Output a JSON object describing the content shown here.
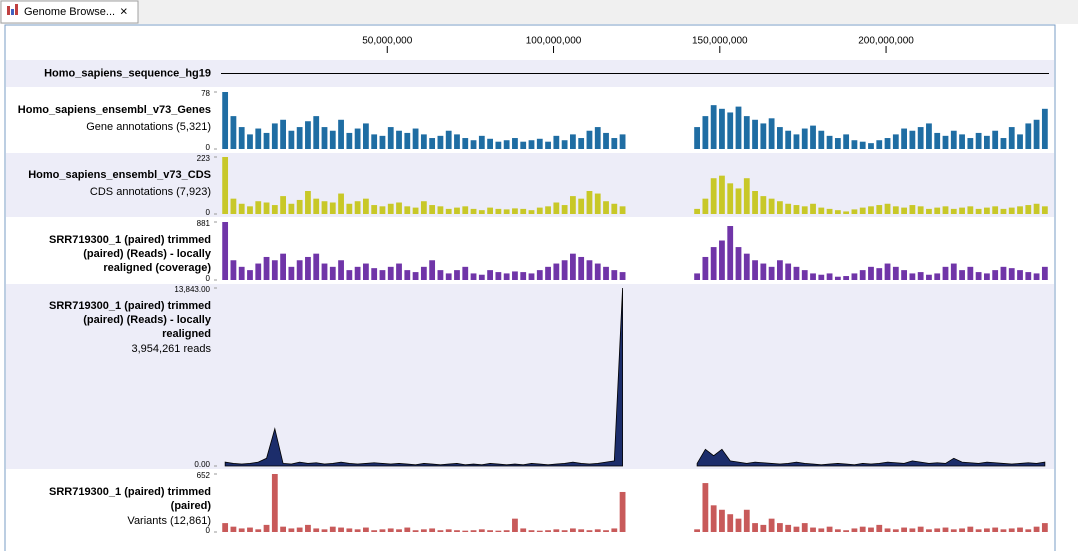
{
  "tab_title": "Genome Browse...",
  "chart_data": {
    "type": "tracks",
    "xlim": [
      0,
      249000000
    ],
    "xticks": [
      {
        "value": 50000000,
        "label": "50,000,000"
      },
      {
        "value": 100000000,
        "label": "100,000,000"
      },
      {
        "value": 150000000,
        "label": "150,000,000"
      },
      {
        "value": 200000000,
        "label": "200,000,000"
      }
    ],
    "tracks": [
      {
        "type": "sequence",
        "label": [
          "Homo_sapiens_sequence_hg19"
        ],
        "color": "#000000"
      },
      {
        "type": "bar",
        "label": [
          "Homo_sapiens_ensembl_v73_Genes"
        ],
        "subtitle": "Gene annotations (5,321)",
        "color": "#1f6da3",
        "ylim": [
          0,
          78
        ],
        "yticks": [
          0,
          78
        ],
        "values": [
          78,
          45,
          30,
          20,
          28,
          22,
          35,
          40,
          25,
          30,
          38,
          45,
          30,
          25,
          40,
          22,
          28,
          35,
          20,
          18,
          30,
          25,
          22,
          28,
          20,
          15,
          18,
          25,
          20,
          15,
          12,
          18,
          14,
          10,
          12,
          15,
          10,
          12,
          14,
          10,
          18,
          12,
          20,
          15,
          25,
          30,
          22,
          15,
          20,
          null,
          null,
          null,
          null,
          null,
          null,
          null,
          null,
          30,
          45,
          60,
          55,
          50,
          58,
          45,
          40,
          35,
          42,
          30,
          25,
          20,
          28,
          32,
          25,
          18,
          15,
          20,
          12,
          10,
          8,
          12,
          15,
          20,
          28,
          25,
          30,
          35,
          22,
          18,
          25,
          20,
          15,
          22,
          18,
          25,
          15,
          30,
          20,
          35,
          40,
          55
        ]
      },
      {
        "type": "bar",
        "label": [
          "Homo_sapiens_ensembl_v73_CDS"
        ],
        "subtitle": "CDS annotations (7,923)",
        "color": "#c8c828",
        "ylim": [
          0,
          223
        ],
        "yticks": [
          0,
          223
        ],
        "values": [
          223,
          60,
          40,
          30,
          50,
          45,
          35,
          70,
          40,
          55,
          90,
          60,
          50,
          45,
          80,
          40,
          50,
          60,
          35,
          30,
          40,
          45,
          30,
          25,
          50,
          35,
          30,
          20,
          25,
          30,
          20,
          15,
          25,
          20,
          18,
          22,
          20,
          15,
          25,
          30,
          45,
          35,
          70,
          60,
          90,
          80,
          50,
          40,
          30,
          null,
          null,
          null,
          null,
          null,
          null,
          null,
          null,
          20,
          60,
          140,
          150,
          120,
          100,
          140,
          90,
          70,
          60,
          50,
          40,
          35,
          30,
          40,
          25,
          20,
          15,
          10,
          18,
          25,
          30,
          35,
          40,
          30,
          25,
          35,
          30,
          20,
          25,
          30,
          20,
          25,
          30,
          20,
          25,
          30,
          20,
          25,
          30,
          35,
          40,
          30
        ]
      },
      {
        "type": "bar",
        "label": [
          "SRR719300_1 (paired) trimmed",
          "(paired) (Reads) - locally",
          "realigned (coverage)"
        ],
        "color": "#7035a8",
        "ylim": [
          0,
          881
        ],
        "yticks": [
          0,
          881
        ],
        "values": [
          881,
          300,
          200,
          150,
          250,
          350,
          300,
          400,
          200,
          300,
          350,
          400,
          250,
          200,
          300,
          150,
          200,
          250,
          180,
          150,
          200,
          250,
          150,
          120,
          200,
          300,
          150,
          100,
          150,
          200,
          100,
          80,
          150,
          120,
          100,
          130,
          120,
          100,
          150,
          200,
          250,
          300,
          400,
          350,
          300,
          250,
          200,
          150,
          120,
          null,
          null,
          null,
          null,
          null,
          null,
          null,
          null,
          100,
          350,
          500,
          600,
          820,
          500,
          400,
          300,
          250,
          200,
          300,
          250,
          200,
          150,
          100,
          80,
          100,
          50,
          60,
          100,
          150,
          200,
          180,
          250,
          200,
          150,
          100,
          120,
          80,
          100,
          200,
          250,
          150,
          200,
          120,
          100,
          150,
          200,
          180,
          150,
          120,
          100,
          200
        ]
      },
      {
        "type": "area",
        "label": [
          "SRR719300_1 (paired) trimmed",
          "(paired) (Reads) - locally",
          "realigned"
        ],
        "subtitle": "3,954,261 reads",
        "color": "#1c2d6b",
        "ylim": [
          0,
          13843
        ],
        "yticks": [
          {
            "value": 0,
            "label": "0.00"
          },
          {
            "value": 13843,
            "label": "13,843.00"
          }
        ],
        "values": [
          300,
          200,
          150,
          200,
          300,
          600,
          2900,
          200,
          150,
          300,
          200,
          250,
          150,
          200,
          300,
          200,
          150,
          200,
          250,
          200,
          150,
          200,
          150,
          100,
          200,
          150,
          100,
          150,
          200,
          100,
          150,
          100,
          200,
          150,
          100,
          150,
          100,
          200,
          150,
          100,
          150,
          200,
          300,
          200,
          150,
          200,
          300,
          400,
          13843,
          null,
          null,
          null,
          null,
          null,
          null,
          null,
          null,
          200,
          1300,
          800,
          1300,
          400,
          300,
          200,
          300,
          250,
          200,
          150,
          200,
          300,
          200,
          150,
          100,
          150,
          200,
          150,
          100,
          200,
          150,
          200,
          300,
          250,
          200,
          400,
          300,
          200,
          250,
          200,
          600,
          300,
          250,
          200,
          300,
          250,
          200,
          150,
          200,
          250,
          200,
          300
        ]
      },
      {
        "type": "bar",
        "label": [
          "SRR719300_1 (paired) trimmed",
          "(paired)"
        ],
        "subtitle": "Variants (12,861)",
        "color": "#c85a5a",
        "ylim": [
          0,
          652
        ],
        "yticks": [
          0,
          652
        ],
        "values": [
          100,
          60,
          40,
          50,
          30,
          80,
          652,
          60,
          40,
          50,
          80,
          40,
          30,
          60,
          50,
          40,
          30,
          50,
          20,
          30,
          40,
          30,
          50,
          20,
          30,
          40,
          20,
          30,
          20,
          15,
          20,
          30,
          20,
          15,
          20,
          150,
          40,
          20,
          15,
          20,
          30,
          20,
          40,
          30,
          20,
          30,
          20,
          40,
          450,
          null,
          null,
          null,
          null,
          null,
          null,
          null,
          null,
          30,
          550,
          300,
          250,
          200,
          150,
          250,
          100,
          80,
          150,
          100,
          80,
          60,
          100,
          50,
          40,
          60,
          30,
          20,
          40,
          60,
          50,
          80,
          40,
          30,
          50,
          40,
          60,
          30,
          40,
          50,
          30,
          40,
          60,
          30,
          40,
          50,
          30,
          40,
          50,
          30,
          60,
          100
        ]
      }
    ]
  }
}
